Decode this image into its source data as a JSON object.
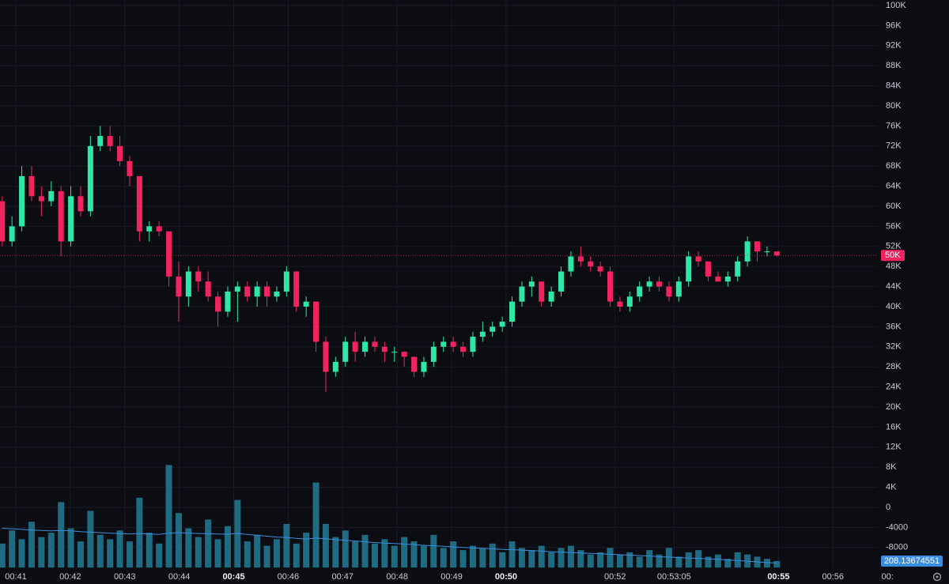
{
  "chart_data": {
    "type": "candlestick",
    "up_color": "#2ee6a6",
    "down_color": "#f2245f",
    "volume_color": "#1f6b82",
    "volume_ma_color": "#3a8ee0",
    "grid": true,
    "xlim": [
      40.71,
      58.13
    ],
    "xticks": [
      {
        "value": 41,
        "label": "00:41"
      },
      {
        "value": 42,
        "label": "00:42"
      },
      {
        "value": 43,
        "label": "00:43"
      },
      {
        "value": 44,
        "label": "00:44"
      },
      {
        "value": 45,
        "label": "00:45",
        "bold": true
      },
      {
        "value": 46,
        "label": "00:46"
      },
      {
        "value": 47,
        "label": "00:47"
      },
      {
        "value": 48,
        "label": "00:48"
      },
      {
        "value": 49,
        "label": "00:49"
      },
      {
        "value": 50,
        "label": "00:50",
        "bold": true
      },
      {
        "value": 52,
        "label": "00:52"
      },
      {
        "value": 53.083,
        "label": "00:53:05"
      },
      {
        "value": 55,
        "label": "00:55",
        "bold": true
      },
      {
        "value": 56,
        "label": "00:56"
      },
      {
        "value": 57,
        "label": "00:"
      }
    ],
    "ylim": [
      -12000,
      101100
    ],
    "yticks": [
      {
        "value": 100000,
        "label": "100K"
      },
      {
        "value": 96000,
        "label": "96K"
      },
      {
        "value": 92000,
        "label": "92K"
      },
      {
        "value": 88000,
        "label": "88K"
      },
      {
        "value": 84000,
        "label": "84K"
      },
      {
        "value": 80000,
        "label": "80K"
      },
      {
        "value": 76000,
        "label": "76K"
      },
      {
        "value": 72000,
        "label": "72K"
      },
      {
        "value": 68000,
        "label": "68K"
      },
      {
        "value": 64000,
        "label": "64K"
      },
      {
        "value": 60000,
        "label": "60K"
      },
      {
        "value": 56000,
        "label": "56K"
      },
      {
        "value": 52000,
        "label": "52K"
      },
      {
        "value": 48000,
        "label": "48K"
      },
      {
        "value": 44000,
        "label": "44K"
      },
      {
        "value": 40000,
        "label": "40K"
      },
      {
        "value": 36000,
        "label": "36K"
      },
      {
        "value": 32000,
        "label": "32K"
      },
      {
        "value": 28000,
        "label": "28K"
      },
      {
        "value": 24000,
        "label": "24K"
      },
      {
        "value": 20000,
        "label": "20K"
      },
      {
        "value": 16000,
        "label": "16K"
      },
      {
        "value": 12000,
        "label": "12K"
      },
      {
        "value": 8000,
        "label": "8K"
      },
      {
        "value": 4000,
        "label": "4K"
      },
      0,
      -4000,
      -8000
    ],
    "last_price_label": "50K",
    "vlim": [
      0,
      5000
    ],
    "x": [
      40.75,
      40.93,
      41.11,
      41.29,
      41.47,
      41.65,
      41.83,
      42.01,
      42.19,
      42.37,
      42.55,
      42.73,
      42.91,
      43.09,
      43.27,
      43.45,
      43.63,
      43.81,
      43.99,
      44.17,
      44.35,
      44.53,
      44.71,
      44.89,
      45.07,
      45.25,
      45.43,
      45.61,
      45.79,
      45.97,
      46.15,
      46.33,
      46.51,
      46.69,
      46.87,
      47.05,
      47.23,
      47.41,
      47.59,
      47.77,
      47.95,
      48.13,
      48.31,
      48.49,
      48.67,
      48.85,
      49.03,
      49.21,
      49.39,
      49.57,
      49.75,
      49.93,
      50.11,
      50.29,
      50.47,
      50.65,
      50.83,
      51.01,
      51.19,
      51.37,
      51.55,
      51.73,
      51.91,
      52.09,
      52.27,
      52.45,
      52.63,
      52.81,
      52.99,
      53.17,
      53.35,
      53.53,
      53.71,
      53.89,
      54.07,
      54.25,
      54.43,
      54.61,
      54.79,
      54.97
    ],
    "open": [
      61000,
      53000,
      56000,
      66000,
      62000,
      61000,
      63000,
      53000,
      62000,
      59000,
      72000,
      74000,
      72000,
      69000,
      66000,
      55000,
      56000,
      55000,
      46000,
      42000,
      47000,
      45000,
      42000,
      39000,
      43000,
      44000,
      42000,
      44000,
      42000,
      43000,
      47000,
      40000,
      41000,
      33000,
      27000,
      29000,
      33000,
      31000,
      33000,
      32000,
      31000,
      31000,
      30000,
      27000,
      29000,
      32000,
      33000,
      32000,
      31000,
      34000,
      35000,
      36000,
      37000,
      41000,
      44000,
      45000,
      41000,
      43000,
      47000,
      50000,
      49000,
      48000,
      47000,
      41000,
      40000,
      42000,
      44000,
      45000,
      44000,
      42000,
      45000,
      50000,
      49000,
      46000,
      45000,
      46000,
      49000,
      53000,
      51000,
      51000
    ],
    "high": [
      62000,
      58000,
      68000,
      68000,
      64000,
      65000,
      64000,
      64000,
      64000,
      74000,
      76000,
      76000,
      74000,
      70000,
      66000,
      57000,
      57000,
      55000,
      49000,
      48000,
      48000,
      47000,
      43000,
      44000,
      45000,
      45000,
      45000,
      45000,
      44000,
      48000,
      47000,
      42000,
      41000,
      34000,
      30000,
      34000,
      35000,
      34000,
      34000,
      33000,
      32000,
      31000,
      30000,
      30000,
      33000,
      34000,
      34000,
      33000,
      35000,
      37000,
      37000,
      38000,
      42000,
      45000,
      46000,
      45000,
      44000,
      48000,
      51000,
      52000,
      50000,
      49000,
      48000,
      42000,
      43000,
      45000,
      46000,
      46000,
      45000,
      46000,
      51000,
      51000,
      49000,
      47000,
      47000,
      50000,
      54000,
      53000,
      52000,
      51000
    ],
    "low": [
      52000,
      52000,
      55000,
      61000,
      58000,
      60000,
      50000,
      52000,
      58000,
      58000,
      71000,
      71000,
      68000,
      64000,
      53000,
      53000,
      54000,
      44000,
      37000,
      40000,
      43000,
      41000,
      36000,
      38000,
      37000,
      41000,
      40000,
      40000,
      41000,
      42000,
      39000,
      38000,
      31000,
      23000,
      26000,
      28000,
      29000,
      30000,
      31000,
      29000,
      29000,
      28000,
      26000,
      26000,
      28000,
      31000,
      31000,
      30000,
      30000,
      33000,
      34000,
      35000,
      36000,
      40000,
      42000,
      40000,
      40000,
      42000,
      46000,
      48000,
      47000,
      46000,
      40000,
      39000,
      39000,
      41000,
      43000,
      43000,
      41000,
      41000,
      44000,
      48000,
      45000,
      45000,
      44000,
      45000,
      48000,
      49000,
      50000,
      50000
    ],
    "close": [
      53000,
      56000,
      66000,
      62000,
      61000,
      63000,
      53000,
      62000,
      59000,
      72000,
      74000,
      72000,
      69000,
      66000,
      55000,
      56000,
      55000,
      46000,
      42000,
      47000,
      45000,
      42000,
      39000,
      43000,
      44000,
      42000,
      44000,
      42000,
      43000,
      47000,
      40000,
      41000,
      33000,
      27000,
      29000,
      33000,
      31000,
      33000,
      32000,
      31000,
      31000,
      30000,
      27000,
      29000,
      32000,
      33000,
      32000,
      31000,
      34000,
      35000,
      36000,
      37000,
      41000,
      44000,
      45000,
      41000,
      43000,
      47000,
      50000,
      49000,
      48000,
      47000,
      41000,
      40000,
      42000,
      44000,
      45000,
      44000,
      42000,
      45000,
      50000,
      49000,
      46000,
      45000,
      46000,
      49000,
      53000,
      51000,
      51000,
      50200
    ],
    "volume": [
      1100,
      1700,
      1300,
      2100,
      1400,
      1600,
      3000,
      1800,
      1200,
      2600,
      1500,
      1300,
      1700,
      1200,
      3200,
      1600,
      1100,
      4700,
      2500,
      1800,
      1400,
      2200,
      1300,
      1900,
      3100,
      1200,
      1500,
      1000,
      1300,
      2000,
      1100,
      1600,
      3900,
      2000,
      1400,
      1700,
      1200,
      1500,
      1100,
      1300,
      1000,
      1400,
      1200,
      1000,
      1500,
      900,
      1200,
      800,
      1000,
      900,
      1100,
      700,
      1200,
      900,
      800,
      1000,
      700,
      900,
      1000,
      800,
      600,
      700,
      900,
      600,
      700,
      500,
      800,
      600,
      900,
      500,
      700,
      800,
      500,
      600,
      400,
      700,
      600,
      500,
      400,
      300
    ],
    "volume_ma": [
      1800,
      1780,
      1750,
      1720,
      1700,
      1680,
      1700,
      1680,
      1650,
      1620,
      1600,
      1580,
      1560,
      1540,
      1560,
      1540,
      1520,
      1580,
      1600,
      1580,
      1560,
      1550,
      1540,
      1530,
      1560,
      1520,
      1480,
      1440,
      1400,
      1380,
      1340,
      1300,
      1350,
      1320,
      1280,
      1250,
      1220,
      1180,
      1150,
      1120,
      1100,
      1080,
      1050,
      1020,
      1000,
      980,
      950,
      920,
      900,
      880,
      860,
      830,
      820,
      800,
      780,
      760,
      730,
      710,
      690,
      670,
      650,
      630,
      610,
      590,
      570,
      550,
      530,
      500,
      480,
      460,
      440,
      420,
      400,
      380,
      350,
      320,
      290,
      260,
      230,
      208.13674551
    ]
  }
}
